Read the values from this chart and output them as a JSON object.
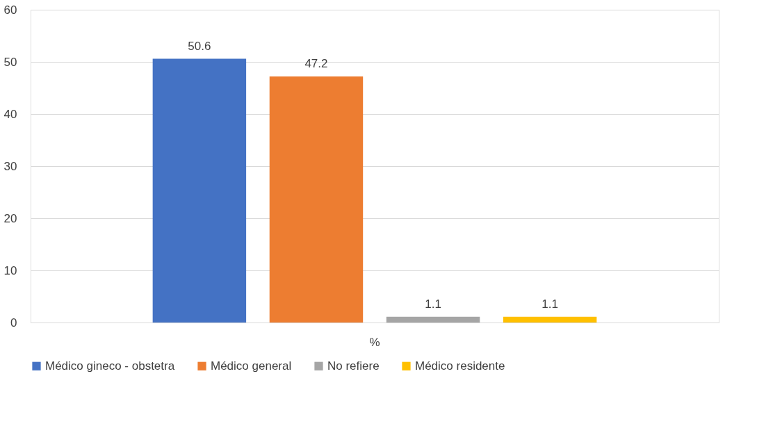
{
  "chart_data": {
    "type": "bar",
    "categories": [
      "%"
    ],
    "series": [
      {
        "name": "Médico gineco - obstetra",
        "color": "#4472c4",
        "values": [
          50.6
        ]
      },
      {
        "name": "Médico general",
        "color": "#ed7d31",
        "values": [
          47.2
        ]
      },
      {
        "name": "No refiere",
        "color": "#a5a5a5",
        "values": [
          1.1
        ]
      },
      {
        "name": "Médico residente",
        "color": "#ffc000",
        "values": [
          1.1
        ]
      }
    ],
    "ylim": [
      0,
      60
    ],
    "yticks": [
      0,
      10,
      20,
      30,
      40,
      50,
      60
    ],
    "grid": "y",
    "legend": "bottom",
    "data_labels": true
  }
}
